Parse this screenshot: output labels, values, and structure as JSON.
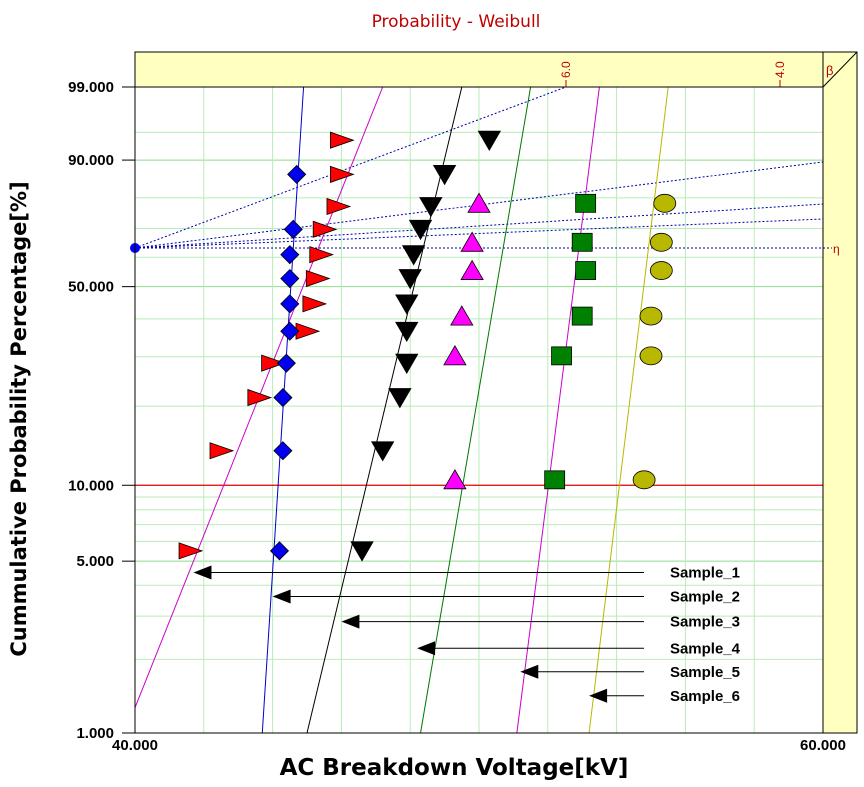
{
  "chart_data": {
    "type": "scatter",
    "title": "Probability - Weibull",
    "xlabel": "AC Breakdown Voltage[kV]",
    "ylabel": "Cummulative Probability Percentage[%]",
    "x_range": [
      40,
      60
    ],
    "y_scale": "weibull",
    "y_range": [
      1,
      99
    ],
    "x_ticks": [
      "40.000",
      "60.000"
    ],
    "y_ticks": [
      {
        "value": 99,
        "label": "99.000"
      },
      {
        "value": 90,
        "label": "90.000"
      },
      {
        "value": 50,
        "label": "50.000"
      },
      {
        "value": 10,
        "label": "10.000"
      },
      {
        "value": 5,
        "label": "5.000"
      },
      {
        "value": 1,
        "label": "1.000"
      }
    ],
    "beta_axis": {
      "symbol": "β",
      "ticks": [
        "6.0",
        "4.0"
      ]
    },
    "eta_label": "η",
    "reference_line": {
      "y": 10
    },
    "colors": {
      "title": "#c00000",
      "grid_minor": "#b8ecb8",
      "plot_background": "#ffffff",
      "side_panel": "#ffffc0",
      "reference_line": "#dd0000",
      "beta_guides": "#0000aa"
    },
    "series": [
      {
        "name": "Sample_1",
        "marker": "triangle-right",
        "color": "#ff0000",
        "line_color": "#cc00cc",
        "x": [
          41.6,
          42.5,
          43.6,
          44.0,
          45.0,
          45.2,
          45.3,
          45.4,
          45.5,
          45.9,
          46.0,
          46.0
        ],
        "y": [
          5.5,
          13.6,
          21.5,
          28.5,
          36.5,
          44.5,
          52.7,
          60.9,
          69.7,
          77.3,
          86.6,
          93.8
        ],
        "line": [
          [
            40.0,
            1.27
          ],
          [
            47.2,
            99
          ]
        ]
      },
      {
        "name": "Sample_2",
        "marker": "diamond",
        "color": "#0000ee",
        "line_color": "#0000cc",
        "x": [
          44.2,
          44.3,
          44.3,
          44.4,
          44.5,
          44.5,
          44.5,
          44.5,
          44.6,
          44.7
        ],
        "y": [
          5.5,
          13.6,
          21.5,
          28.5,
          36.5,
          44.5,
          52.7,
          60.9,
          69.7,
          86.6
        ],
        "line": [
          [
            43.7,
            1.0
          ],
          [
            44.9,
            99
          ]
        ]
      },
      {
        "name": "Sample_3",
        "marker": "triangle-down",
        "color": "#000000",
        "line_color": "#000000",
        "x": [
          46.6,
          47.2,
          47.7,
          47.9,
          47.9,
          47.9,
          48.0,
          48.1,
          48.3,
          48.6,
          49.0,
          50.3
        ],
        "y": [
          5.5,
          13.6,
          21.5,
          28.5,
          36.5,
          44.5,
          52.7,
          60.9,
          69.7,
          77.3,
          86.6,
          93.8
        ],
        "line": [
          [
            45.0,
            1.0
          ],
          [
            49.5,
            99
          ]
        ]
      },
      {
        "name": "Sample_4",
        "marker": "triangle-up",
        "color": "#ff00ff",
        "line_color": "#007700",
        "x": [
          49.3,
          49.3,
          49.5,
          49.8,
          49.8,
          50.0
        ],
        "y": [
          10.5,
          30.2,
          40.8,
          55.4,
          65.2,
          78.3
        ],
        "line": [
          [
            48.3,
            1.0
          ],
          [
            51.5,
            99
          ]
        ]
      },
      {
        "name": "Sample_5",
        "marker": "square",
        "color": "#008000",
        "line_color": "#cc00cc",
        "x": [
          52.2,
          52.4,
          53.0,
          53.1,
          53.0,
          53.1
        ],
        "y": [
          10.5,
          30.2,
          40.8,
          55.4,
          65.2,
          78.3
        ],
        "line": [
          [
            51.1,
            1.0
          ],
          [
            53.5,
            99
          ]
        ]
      },
      {
        "name": "Sample_6",
        "marker": "circle",
        "color": "#b8b800",
        "line_color": "#b8b800",
        "x": [
          54.8,
          55.0,
          55.0,
          55.3,
          55.3,
          55.4
        ],
        "y": [
          10.5,
          30.2,
          40.8,
          55.4,
          65.2,
          78.3
        ],
        "line": [
          [
            53.2,
            1.0
          ],
          [
            55.5,
            99
          ]
        ]
      }
    ],
    "callouts": [
      {
        "label": "Sample_1",
        "arrow_to_x": 41.7,
        "y": 4.5
      },
      {
        "label": "Sample_2",
        "arrow_to_x": 44.0,
        "y": 3.6
      },
      {
        "label": "Sample_3",
        "arrow_to_x": 46.0,
        "y": 2.85
      },
      {
        "label": "Sample_4",
        "arrow_to_x": 48.2,
        "y": 2.22
      },
      {
        "label": "Sample_5",
        "arrow_to_x": 51.2,
        "y": 1.78
      },
      {
        "label": "Sample_6",
        "arrow_to_x": 53.2,
        "y": 1.42
      }
    ]
  }
}
